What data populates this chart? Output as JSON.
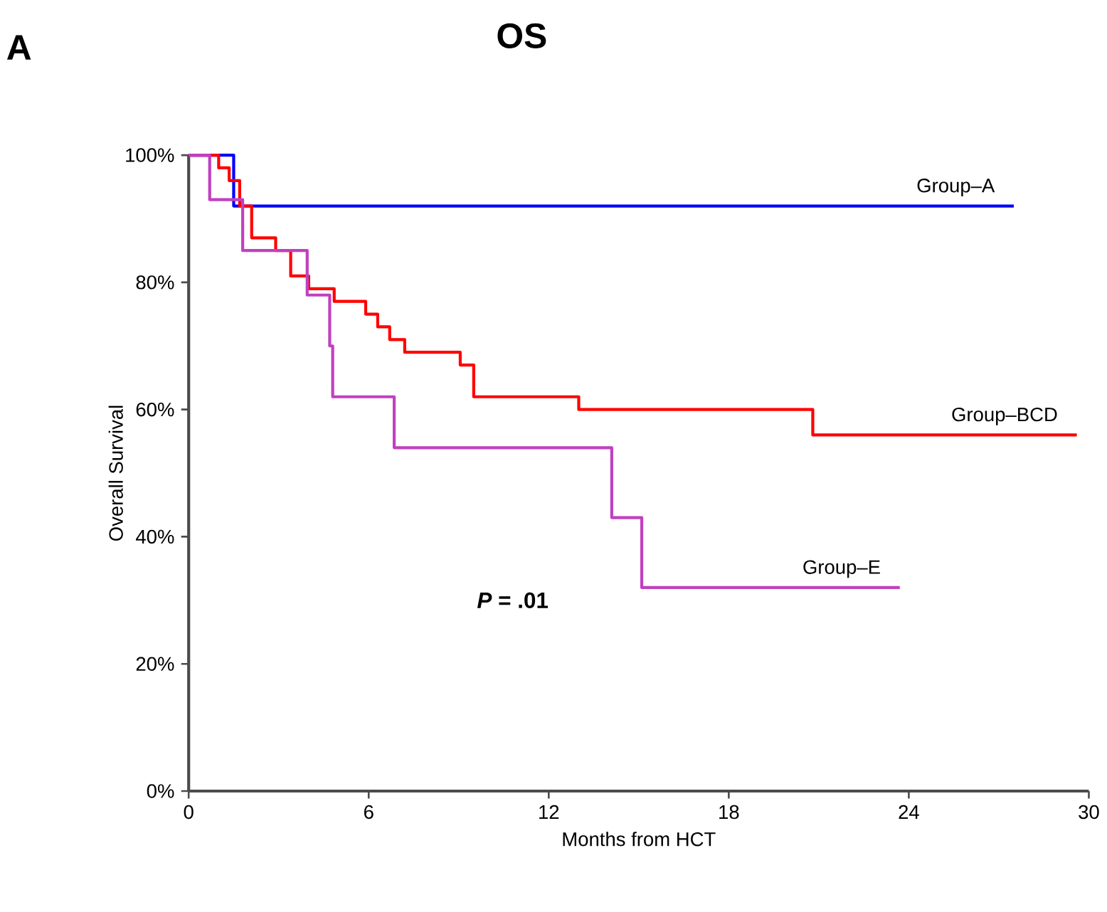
{
  "chart_data": {
    "type": "step",
    "title": "OS",
    "xlabel": "Months from HCT",
    "ylabel": "Overall Survival",
    "annotations": [
      "A",
      "*P* = .01"
    ],
    "xlim": [
      0,
      30
    ],
    "xticks": [
      0,
      6,
      12,
      18,
      24,
      30
    ],
    "ylim": [
      0,
      100
    ],
    "yticks": [
      {
        "value": 0,
        "label": "0%"
      },
      {
        "value": 20,
        "label": "20%"
      },
      {
        "value": 40,
        "label": "40%"
      },
      {
        "value": 60,
        "label": "60%"
      },
      {
        "value": 80,
        "label": "80%"
      },
      {
        "value": 100,
        "label": "100%"
      }
    ],
    "grid": false,
    "legend": false,
    "line_style": "solid",
    "marker": "none",
    "series": [
      {
        "name": "Group–A",
        "color": "#0000ff",
        "x": [
          0,
          1.5,
          27.5
        ],
        "values": [
          100,
          92,
          92
        ]
      },
      {
        "name": "Group–BCD",
        "color": "#ff0000",
        "x": [
          0,
          1.0,
          1.35,
          1.7,
          2.1,
          2.9,
          3.4,
          4.0,
          4.85,
          5.9,
          6.3,
          6.7,
          7.2,
          9.05,
          9.5,
          13.0,
          20.8,
          29.6
        ],
        "values": [
          100,
          98,
          96,
          92,
          87,
          85,
          81,
          79,
          77,
          75,
          73,
          71,
          69,
          67,
          62,
          60,
          56,
          56
        ]
      },
      {
        "name": "Group–E",
        "color": "#c040c0",
        "x": [
          0,
          0.7,
          1.8,
          3.95,
          4.7,
          4.8,
          6.85,
          14.1,
          15.1,
          23.7
        ],
        "values": [
          100,
          93,
          85,
          78,
          70,
          62,
          54,
          43,
          32,
          32
        ]
      }
    ]
  }
}
